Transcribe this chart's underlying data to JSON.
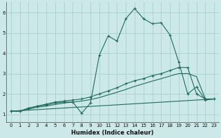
{
  "xlabel": "Humidex (Indice chaleur)",
  "xlim": [
    -0.5,
    23.5
  ],
  "ylim": [
    0.6,
    6.5
  ],
  "yticks": [
    1,
    2,
    3,
    4,
    5,
    6
  ],
  "xticks": [
    0,
    1,
    2,
    3,
    4,
    5,
    6,
    7,
    8,
    9,
    10,
    11,
    12,
    13,
    14,
    15,
    16,
    17,
    18,
    19,
    20,
    21,
    22,
    23
  ],
  "bg_color": "#cce8e8",
  "grid_color": "#aacfcf",
  "line_color": "#1e6b5e",
  "line1_x": [
    0,
    1,
    2,
    3,
    4,
    5,
    6,
    7,
    8,
    9,
    10,
    11,
    12,
    13,
    14,
    15,
    16,
    17,
    18,
    19,
    20,
    21,
    22,
    23
  ],
  "line1_y": [
    1.15,
    1.15,
    1.3,
    1.4,
    1.45,
    1.55,
    1.6,
    1.6,
    1.05,
    1.55,
    3.9,
    4.85,
    4.6,
    5.7,
    6.2,
    5.7,
    5.45,
    5.5,
    4.9,
    3.55,
    2.0,
    2.35,
    1.7,
    1.75
  ],
  "line2_x": [
    0,
    1,
    2,
    3,
    4,
    5,
    6,
    7,
    8,
    9,
    10,
    11,
    12,
    13,
    14,
    15,
    16,
    17,
    18,
    19,
    20,
    21,
    22,
    23
  ],
  "line2_y": [
    1.15,
    1.15,
    1.3,
    1.4,
    1.5,
    1.6,
    1.65,
    1.7,
    1.75,
    1.85,
    2.0,
    2.15,
    2.3,
    2.5,
    2.65,
    2.75,
    2.9,
    3.0,
    3.15,
    3.3,
    3.3,
    2.0,
    1.75,
    1.75
  ],
  "line3_x": [
    0,
    1,
    2,
    3,
    4,
    5,
    6,
    7,
    8,
    9,
    10,
    11,
    12,
    13,
    14,
    15,
    16,
    17,
    18,
    19,
    20,
    21,
    22,
    23
  ],
  "line3_y": [
    1.15,
    1.15,
    1.25,
    1.35,
    1.4,
    1.48,
    1.55,
    1.6,
    1.65,
    1.72,
    1.82,
    1.95,
    2.08,
    2.22,
    2.37,
    2.5,
    2.63,
    2.75,
    2.88,
    3.0,
    3.0,
    2.85,
    1.75,
    1.75
  ],
  "line4_x": [
    0,
    23
  ],
  "line4_y": [
    1.15,
    1.75
  ]
}
